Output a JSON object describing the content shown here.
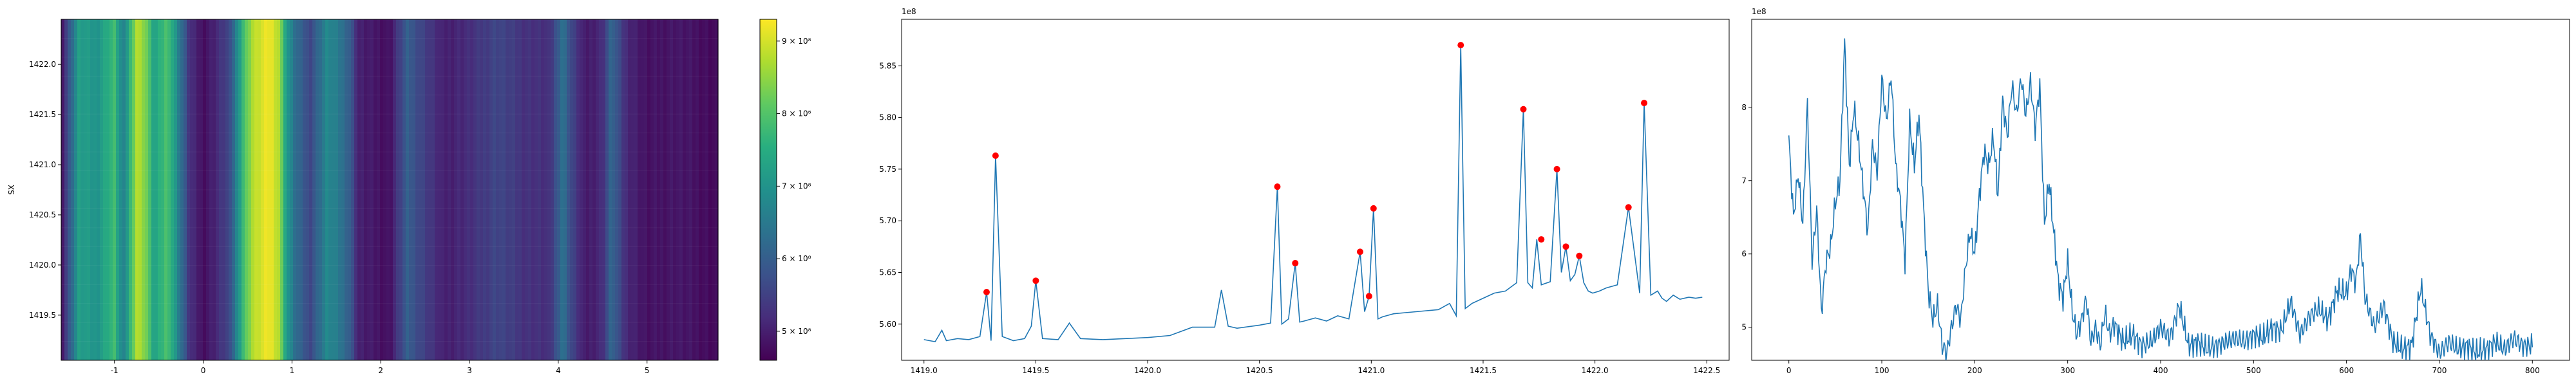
{
  "chart_data": [
    {
      "type": "heatmap",
      "ylabel": "SX",
      "xlim": [
        -1.6,
        5.8
      ],
      "ylim": [
        1419.05,
        1422.45
      ],
      "x_ticks": [
        "-1",
        "0",
        "1",
        "2",
        "3",
        "4",
        "5"
      ],
      "x_tick_values": [
        -1,
        0,
        1,
        2,
        3,
        4,
        5
      ],
      "y_ticks": [
        "1419.5",
        "1420.0",
        "1420.5",
        "1421.0",
        "1421.5",
        "1422.0"
      ],
      "y_tick_values": [
        1419.5,
        1420.0,
        1420.5,
        1421.0,
        1421.5,
        1422.0
      ],
      "colormap": "viridis",
      "colorbar": {
        "range": [
          460000000,
          930000000
        ],
        "ticks": [
          "5 × 10⁸",
          "6 × 10⁸",
          "7 × 10⁸",
          "8 × 10⁸",
          "9 × 10⁸"
        ],
        "tick_values": [
          500000000,
          600000000,
          700000000,
          800000000,
          900000000
        ]
      },
      "column_profile_x": [
        -1.6,
        -1.4,
        -1.2,
        -1.0,
        -0.9,
        -0.75,
        -0.65,
        -0.55,
        -0.4,
        -0.3,
        -0.15,
        0.0,
        0.1,
        0.3,
        0.45,
        0.55,
        0.65,
        0.75,
        0.85,
        0.95,
        1.05,
        1.2,
        1.4,
        1.55,
        1.65,
        1.75,
        1.9,
        2.1,
        2.3,
        2.45,
        2.7,
        3.0,
        3.3,
        3.6,
        3.9,
        4.05,
        4.15,
        4.3,
        4.5,
        4.6,
        4.75,
        5.0,
        5.3,
        5.6,
        5.8
      ],
      "column_profile_value": [
        480000000,
        720000000,
        700000000,
        780000000,
        650000000,
        880000000,
        840000000,
        720000000,
        800000000,
        690000000,
        520000000,
        480000000,
        500000000,
        560000000,
        780000000,
        870000000,
        900000000,
        920000000,
        880000000,
        700000000,
        620000000,
        560000000,
        680000000,
        640000000,
        600000000,
        500000000,
        490000000,
        480000000,
        600000000,
        560000000,
        500000000,
        520000000,
        560000000,
        530000000,
        520000000,
        640000000,
        560000000,
        490000000,
        520000000,
        620000000,
        520000000,
        480000000,
        490000000,
        480000000,
        470000000
      ]
    },
    {
      "type": "line",
      "scale_label": "1e8",
      "xlim": [
        1418.9,
        1422.6
      ],
      "ylim": [
        5.565,
        5.895
      ],
      "x_ticks": [
        "1419.0",
        "1419.5",
        "1420.0",
        "1420.5",
        "1421.0",
        "1421.5",
        "1422.0",
        "1422.5"
      ],
      "x_tick_values": [
        1419.0,
        1419.5,
        1420.0,
        1420.5,
        1421.0,
        1421.5,
        1422.0,
        1422.5
      ],
      "y_ticks": [
        "5.60",
        "5.65",
        "5.70",
        "5.75",
        "5.80",
        "5.85"
      ],
      "y_tick_values": [
        5.6,
        5.65,
        5.7,
        5.75,
        5.8,
        5.85
      ],
      "line_color": "#1f77b4",
      "x": [
        1419.0,
        1419.05,
        1419.08,
        1419.1,
        1419.15,
        1419.2,
        1419.25,
        1419.28,
        1419.3,
        1419.32,
        1419.35,
        1419.4,
        1419.45,
        1419.48,
        1419.5,
        1419.53,
        1419.6,
        1419.65,
        1419.7,
        1419.8,
        1419.9,
        1420.0,
        1420.1,
        1420.2,
        1420.3,
        1420.33,
        1420.36,
        1420.4,
        1420.5,
        1420.55,
        1420.58,
        1420.6,
        1420.63,
        1420.66,
        1420.68,
        1420.7,
        1420.75,
        1420.8,
        1420.85,
        1420.9,
        1420.95,
        1420.97,
        1420.99,
        1421.01,
        1421.03,
        1421.05,
        1421.1,
        1421.2,
        1421.3,
        1421.35,
        1421.38,
        1421.4,
        1421.42,
        1421.45,
        1421.5,
        1421.55,
        1421.6,
        1421.65,
        1421.68,
        1421.7,
        1421.72,
        1421.74,
        1421.76,
        1421.8,
        1421.83,
        1421.85,
        1421.87,
        1421.89,
        1421.91,
        1421.93,
        1421.95,
        1421.97,
        1421.99,
        1422.02,
        1422.05,
        1422.1,
        1422.15,
        1422.2,
        1422.22,
        1422.25,
        1422.28,
        1422.3,
        1422.32,
        1422.35,
        1422.38,
        1422.42,
        1422.45,
        1422.48
      ],
      "y": [
        5.585,
        5.583,
        5.594,
        5.584,
        5.586,
        5.585,
        5.588,
        5.631,
        5.584,
        5.763,
        5.588,
        5.584,
        5.586,
        5.598,
        5.642,
        5.586,
        5.585,
        5.601,
        5.586,
        5.585,
        5.586,
        5.587,
        5.589,
        5.597,
        5.597,
        5.633,
        5.598,
        5.596,
        5.599,
        5.601,
        5.733,
        5.6,
        5.605,
        5.659,
        5.602,
        5.603,
        5.606,
        5.603,
        5.608,
        5.605,
        5.67,
        5.612,
        5.627,
        5.712,
        5.605,
        5.607,
        5.61,
        5.612,
        5.614,
        5.62,
        5.608,
        5.87,
        5.615,
        5.62,
        5.625,
        5.63,
        5.632,
        5.64,
        5.808,
        5.64,
        5.635,
        5.682,
        5.638,
        5.641,
        5.75,
        5.65,
        5.675,
        5.642,
        5.648,
        5.666,
        5.64,
        5.632,
        5.63,
        5.632,
        5.635,
        5.638,
        5.713,
        5.63,
        5.814,
        5.628,
        5.632,
        5.625,
        5.622,
        5.628,
        5.624,
        5.626,
        5.625,
        5.626
      ],
      "peaks_x": [
        1419.28,
        1419.32,
        1419.5,
        1420.58,
        1420.66,
        1420.95,
        1420.99,
        1421.01,
        1421.4,
        1421.68,
        1421.76,
        1421.83,
        1421.87,
        1421.93,
        1422.15,
        1422.22
      ],
      "peaks_y": [
        5.631,
        5.763,
        5.642,
        5.733,
        5.659,
        5.67,
        5.627,
        5.712,
        5.87,
        5.808,
        5.682,
        5.75,
        5.675,
        5.666,
        5.713,
        5.814
      ],
      "peak_color": "#ff0000"
    },
    {
      "type": "line",
      "scale_label": "1e8",
      "xlim": [
        -40,
        840
      ],
      "ylim": [
        4.55,
        9.2
      ],
      "x_ticks": [
        "0",
        "100",
        "200",
        "300",
        "400",
        "500",
        "600",
        "700",
        "800"
      ],
      "x_tick_values": [
        0,
        100,
        200,
        300,
        400,
        500,
        600,
        700,
        800
      ],
      "y_ticks": [
        "5",
        "6",
        "7",
        "8"
      ],
      "y_tick_values": [
        5,
        6,
        7,
        8
      ],
      "line_color": "#1f77b4",
      "x": [
        0,
        5,
        10,
        15,
        20,
        25,
        30,
        35,
        40,
        45,
        50,
        55,
        60,
        65,
        70,
        75,
        80,
        85,
        90,
        95,
        100,
        105,
        110,
        115,
        120,
        125,
        130,
        135,
        140,
        145,
        150,
        155,
        160,
        165,
        170,
        175,
        180,
        185,
        190,
        195,
        200,
        205,
        210,
        215,
        220,
        225,
        230,
        235,
        240,
        245,
        250,
        255,
        260,
        265,
        270,
        275,
        280,
        285,
        290,
        295,
        300,
        305,
        310,
        315,
        320,
        325,
        330,
        335,
        340,
        345,
        350,
        360,
        370,
        380,
        390,
        400,
        410,
        420,
        430,
        440,
        450,
        460,
        470,
        480,
        490,
        500,
        510,
        520,
        530,
        540,
        550,
        560,
        570,
        580,
        590,
        600,
        605,
        610,
        615,
        620,
        630,
        640,
        650,
        660,
        670,
        680,
        690,
        700,
        710,
        720,
        730,
        740,
        750,
        760,
        770,
        780,
        790,
        800
      ],
      "y": [
        7.55,
        6.5,
        7.1,
        6.4,
        8.05,
        5.9,
        6.6,
        5.2,
        5.9,
        6.1,
        6.7,
        7.0,
        8.9,
        7.2,
        8.0,
        7.5,
        6.9,
        6.3,
        7.5,
        7.1,
        8.4,
        7.8,
        8.45,
        7.2,
        6.7,
        5.9,
        7.8,
        7.2,
        7.9,
        6.6,
        5.5,
        5.1,
        5.3,
        4.75,
        4.65,
        5.0,
        5.3,
        5.1,
        5.8,
        6.3,
        6.0,
        6.8,
        7.4,
        7.2,
        7.6,
        6.8,
        8.1,
        7.6,
        8.3,
        7.9,
        8.4,
        7.9,
        8.35,
        7.7,
        8.3,
        6.4,
        7.0,
        6.3,
        5.6,
        5.4,
        5.9,
        5.2,
        4.9,
        5.1,
        5.4,
        4.8,
        5.0,
        4.75,
        5.2,
        4.9,
        5.05,
        4.8,
        4.9,
        4.75,
        4.8,
        5.0,
        4.85,
        5.3,
        4.75,
        4.8,
        4.7,
        4.75,
        4.8,
        4.85,
        4.8,
        4.9,
        4.85,
        5.0,
        4.95,
        5.35,
        4.9,
        5.15,
        5.25,
        5.1,
        5.5,
        5.45,
        5.8,
        5.6,
        6.25,
        5.4,
        5.0,
        5.3,
        4.8,
        4.7,
        4.75,
        5.55,
        4.9,
        4.65,
        4.8,
        4.7,
        4.75,
        4.65,
        4.7,
        4.8,
        4.7,
        4.85,
        4.75,
        4.75
      ]
    }
  ]
}
